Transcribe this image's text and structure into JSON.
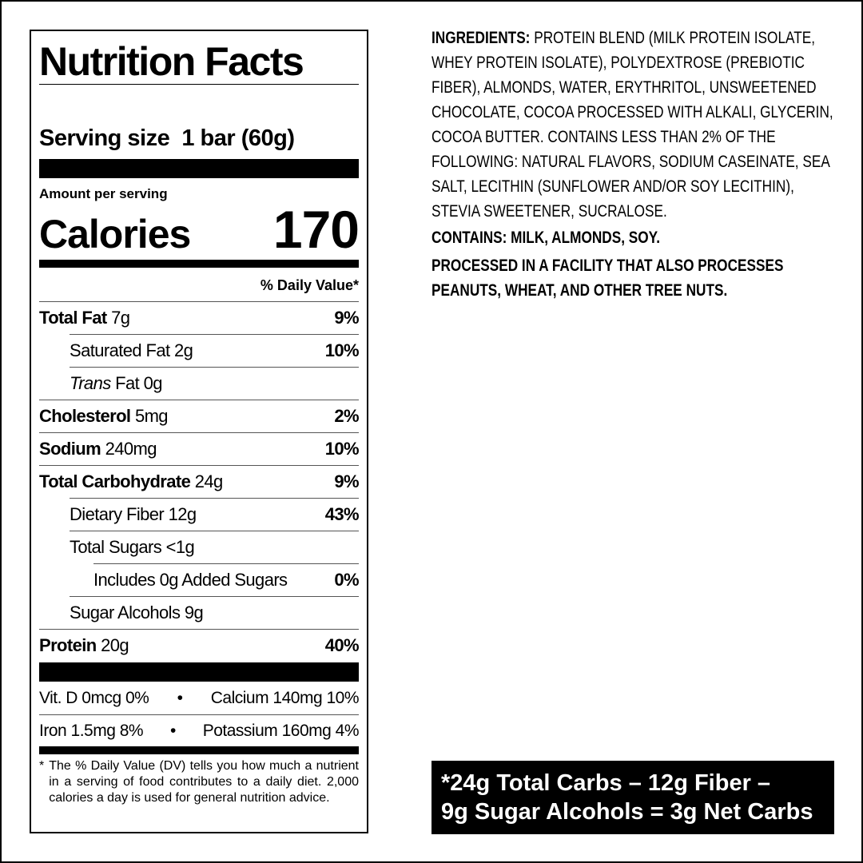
{
  "label": {
    "title": "Nutrition Facts",
    "serving_label": "Serving size",
    "serving_value": "1 bar (60g)",
    "amount_per_serving": "Amount per serving",
    "calories_label": "Calories",
    "calories_value": "170",
    "dv_header": "% Daily Value*",
    "rows": [
      {
        "name": "Total Fat",
        "amount": "7g",
        "dv": "9%"
      },
      {
        "name": "Saturated Fat",
        "amount": "2g",
        "dv": "10%"
      },
      {
        "name_italic": "Trans",
        "name": "Fat",
        "amount": "0g"
      },
      {
        "name": "Cholesterol",
        "amount": "5mg",
        "dv": "2%"
      },
      {
        "name": "Sodium",
        "amount": "240mg",
        "dv": "10%"
      },
      {
        "name": "Total Carbohydrate",
        "amount": "24g",
        "dv": "9%"
      },
      {
        "name": "Dietary Fiber",
        "amount": "12g",
        "dv": "43%"
      },
      {
        "name": "Total Sugars",
        "amount": "<1g"
      },
      {
        "name": "Includes 0g Added Sugars",
        "dv": "0%"
      },
      {
        "name": "Sugar Alcohols",
        "amount": "9g"
      },
      {
        "name": "Protein",
        "amount": "20g",
        "dv": "40%"
      }
    ],
    "vitamins": [
      "Vit. D 0mcg 0%",
      "Calcium 140mg 10%",
      "Iron 1.5mg 8%",
      "Potassium 160mg 4%"
    ],
    "separator": "•",
    "footnote_mark": "*",
    "footnote": "The % Daily Value (DV) tells you how much a nutrient in a serving of food contributes to a daily diet. 2,000 calories a day is used for general nutrition advice."
  },
  "ingredients": {
    "label": "INGREDIENTS:",
    "text": "PROTEIN BLEND (MILK PROTEIN ISOLATE, WHEY PROTEIN ISOLATE), POLYDEXTROSE (PREBIOTIC FIBER), ALMONDS, WATER, ERYTHRITOL, UNSWEETENED CHOCOLATE, COCOA PROCESSED WITH ALKALI, GLYCERIN, COCOA BUTTER. CONTAINS LESS THAN 2% OF THE FOLLOWING: NATURAL FLAVORS, SODIUM CASEINATE, SEA SALT, LECITHIN (SUNFLOWER AND/OR SOY LECITHIN), STEVIA SWEETENER, SUCRALOSE.",
    "contains": "CONTAINS: MILK, ALMONDS, SOY.",
    "facility": "PROCESSED IN A FACILITY THAT ALSO PROCESSES PEANUTS, WHEAT, AND OTHER TREE NUTS."
  },
  "net_carbs": {
    "line1": "*24g Total Carbs – 12g Fiber –",
    "line2": "9g Sugar Alcohols = 3g Net Carbs"
  }
}
